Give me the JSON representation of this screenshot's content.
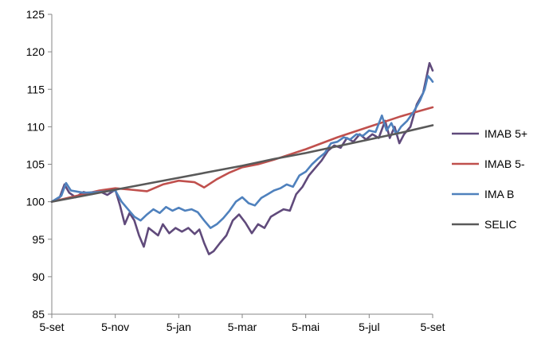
{
  "chart_data": {
    "type": "line",
    "title": "",
    "xlabel": "",
    "ylabel": "",
    "ylim": [
      85,
      125
    ],
    "y_ticks": [
      85,
      90,
      95,
      100,
      105,
      110,
      115,
      120,
      125
    ],
    "x_range": [
      0,
      12
    ],
    "x_ticks": [
      {
        "x": 0,
        "label": "5-set"
      },
      {
        "x": 2,
        "label": "5-nov"
      },
      {
        "x": 4,
        "label": "5-jan"
      },
      {
        "x": 6,
        "label": "5-mar"
      },
      {
        "x": 8,
        "label": "5-mai"
      },
      {
        "x": 10,
        "label": "5-jul"
      },
      {
        "x": 12,
        "label": "5-set"
      }
    ],
    "grid": false,
    "legend_position": "right",
    "series": [
      {
        "name": "IMAB 5+",
        "color": "#604a7b",
        "points": [
          [
            0,
            100
          ],
          [
            0.25,
            100.6
          ],
          [
            0.4,
            102.3
          ],
          [
            0.55,
            101.2
          ],
          [
            0.75,
            100.6
          ],
          [
            1.0,
            101.3
          ],
          [
            1.25,
            101.0
          ],
          [
            1.5,
            101.4
          ],
          [
            1.75,
            100.9
          ],
          [
            2.0,
            101.6
          ],
          [
            2.15,
            99.5
          ],
          [
            2.3,
            97.0
          ],
          [
            2.45,
            98.5
          ],
          [
            2.6,
            97.5
          ],
          [
            2.75,
            95.5
          ],
          [
            2.9,
            94.0
          ],
          [
            3.05,
            96.5
          ],
          [
            3.2,
            96.0
          ],
          [
            3.35,
            95.5
          ],
          [
            3.5,
            97.0
          ],
          [
            3.7,
            95.8
          ],
          [
            3.9,
            96.5
          ],
          [
            4.1,
            96.0
          ],
          [
            4.3,
            96.5
          ],
          [
            4.5,
            95.7
          ],
          [
            4.65,
            96.3
          ],
          [
            4.8,
            94.5
          ],
          [
            4.95,
            93.0
          ],
          [
            5.1,
            93.4
          ],
          [
            5.3,
            94.5
          ],
          [
            5.5,
            95.5
          ],
          [
            5.7,
            97.5
          ],
          [
            5.9,
            98.3
          ],
          [
            6.1,
            97.2
          ],
          [
            6.3,
            95.8
          ],
          [
            6.5,
            97.0
          ],
          [
            6.7,
            96.5
          ],
          [
            6.9,
            98.0
          ],
          [
            7.1,
            98.5
          ],
          [
            7.3,
            99.0
          ],
          [
            7.5,
            98.8
          ],
          [
            7.7,
            101.0
          ],
          [
            7.9,
            102.0
          ],
          [
            8.1,
            103.5
          ],
          [
            8.3,
            104.5
          ],
          [
            8.5,
            105.5
          ],
          [
            8.7,
            106.8
          ],
          [
            8.9,
            107.5
          ],
          [
            9.1,
            107.2
          ],
          [
            9.3,
            108.5
          ],
          [
            9.5,
            108.0
          ],
          [
            9.7,
            109.0
          ],
          [
            9.9,
            108.3
          ],
          [
            10.1,
            109.0
          ],
          [
            10.3,
            108.5
          ],
          [
            10.5,
            110.8
          ],
          [
            10.65,
            108.5
          ],
          [
            10.8,
            110.0
          ],
          [
            10.95,
            107.8
          ],
          [
            11.1,
            109.0
          ],
          [
            11.3,
            110.0
          ],
          [
            11.5,
            113.0
          ],
          [
            11.7,
            114.5
          ],
          [
            11.8,
            116.5
          ],
          [
            11.9,
            118.5
          ],
          [
            12.0,
            117.5
          ]
        ]
      },
      {
        "name": "IMAB 5-",
        "color": "#c0504d",
        "points": [
          [
            0,
            100
          ],
          [
            0.5,
            100.5
          ],
          [
            1.0,
            101.0
          ],
          [
            1.5,
            101.5
          ],
          [
            2.0,
            101.8
          ],
          [
            2.5,
            101.6
          ],
          [
            3.0,
            101.4
          ],
          [
            3.5,
            102.3
          ],
          [
            4.0,
            102.8
          ],
          [
            4.5,
            102.6
          ],
          [
            4.8,
            101.9
          ],
          [
            5.2,
            103.0
          ],
          [
            5.6,
            103.9
          ],
          [
            6.0,
            104.6
          ],
          [
            6.5,
            105.0
          ],
          [
            7.0,
            105.6
          ],
          [
            7.5,
            106.3
          ],
          [
            8.0,
            107.0
          ],
          [
            8.5,
            107.8
          ],
          [
            9.0,
            108.6
          ],
          [
            9.5,
            109.3
          ],
          [
            10.0,
            110.0
          ],
          [
            10.5,
            110.7
          ],
          [
            11.0,
            111.4
          ],
          [
            11.5,
            112.0
          ],
          [
            12.0,
            112.6
          ]
        ]
      },
      {
        "name": "IMA B",
        "color": "#4f81bd",
        "points": [
          [
            0,
            100
          ],
          [
            0.3,
            100.8
          ],
          [
            0.45,
            102.5
          ],
          [
            0.6,
            101.5
          ],
          [
            1.0,
            101.2
          ],
          [
            1.5,
            101.3
          ],
          [
            2.0,
            101.5
          ],
          [
            2.2,
            100.0
          ],
          [
            2.4,
            99.0
          ],
          [
            2.6,
            98.0
          ],
          [
            2.8,
            97.5
          ],
          [
            3.0,
            98.3
          ],
          [
            3.2,
            99.0
          ],
          [
            3.4,
            98.5
          ],
          [
            3.6,
            99.3
          ],
          [
            3.8,
            98.8
          ],
          [
            4.0,
            99.2
          ],
          [
            4.2,
            98.8
          ],
          [
            4.4,
            99.0
          ],
          [
            4.6,
            98.6
          ],
          [
            4.8,
            97.5
          ],
          [
            5.0,
            96.5
          ],
          [
            5.2,
            97.0
          ],
          [
            5.4,
            97.8
          ],
          [
            5.6,
            98.8
          ],
          [
            5.8,
            100.0
          ],
          [
            6.0,
            100.6
          ],
          [
            6.2,
            99.8
          ],
          [
            6.4,
            99.5
          ],
          [
            6.6,
            100.5
          ],
          [
            6.8,
            101.0
          ],
          [
            7.0,
            101.5
          ],
          [
            7.2,
            101.8
          ],
          [
            7.4,
            102.3
          ],
          [
            7.6,
            102.0
          ],
          [
            7.8,
            103.5
          ],
          [
            8.0,
            104.0
          ],
          [
            8.2,
            105.0
          ],
          [
            8.4,
            105.8
          ],
          [
            8.6,
            106.5
          ],
          [
            8.8,
            107.8
          ],
          [
            9.0,
            108.0
          ],
          [
            9.2,
            108.6
          ],
          [
            9.4,
            108.3
          ],
          [
            9.6,
            109.0
          ],
          [
            9.8,
            108.8
          ],
          [
            10.0,
            109.5
          ],
          [
            10.2,
            109.3
          ],
          [
            10.4,
            111.5
          ],
          [
            10.55,
            109.5
          ],
          [
            10.7,
            110.5
          ],
          [
            10.85,
            109.0
          ],
          [
            11.0,
            110.0
          ],
          [
            11.2,
            110.8
          ],
          [
            11.4,
            112.0
          ],
          [
            11.6,
            113.5
          ],
          [
            11.75,
            115.0
          ],
          [
            11.85,
            116.8
          ],
          [
            11.95,
            116.3
          ],
          [
            12.0,
            116.0
          ]
        ]
      },
      {
        "name": "SELIC",
        "color": "#595959",
        "points": [
          [
            0,
            100
          ],
          [
            1,
            100.8
          ],
          [
            2,
            101.6
          ],
          [
            3,
            102.4
          ],
          [
            4,
            103.2
          ],
          [
            5,
            104.0
          ],
          [
            6,
            104.8
          ],
          [
            7,
            105.7
          ],
          [
            8,
            106.5
          ],
          [
            9,
            107.4
          ],
          [
            10,
            108.3
          ],
          [
            11,
            109.2
          ],
          [
            12,
            110.2
          ]
        ]
      }
    ]
  }
}
